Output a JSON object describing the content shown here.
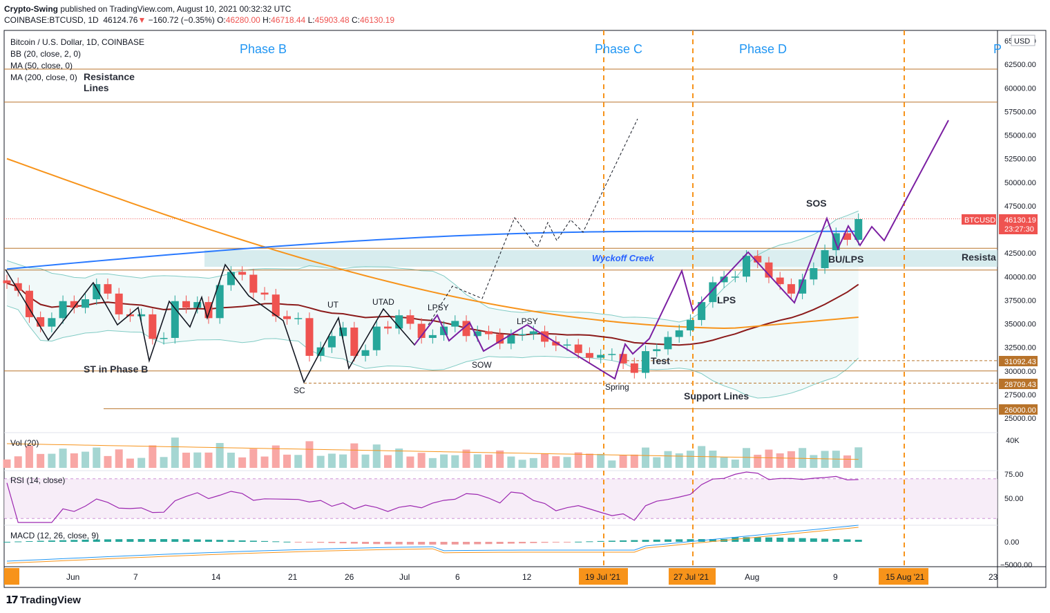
{
  "header": {
    "publisher": "Crypto-Swing",
    "published_text": "published on TradingView.com, August 10, 2021 00:32:32 UTC",
    "symbol": "COINBASE:BTCUSD, 1D",
    "last": "46124.76",
    "change": "−160.72 (−0.35%)",
    "o_label": "O:",
    "o": "46280.00",
    "h_label": "H:",
    "h": "46718.44",
    "l_label": "L:",
    "l": "45903.48",
    "c_label": "C:",
    "c": "46130.19"
  },
  "legend": {
    "title": "Bitcoin / U.S. Dollar, 1D, COINBASE",
    "bb": "BB (20, close, 2, 0)",
    "ma50": "MA (50, close, 0)",
    "ma200": "MA (200, close, 0)",
    "vol": "Vol (20)",
    "rsi": "RSI (14, close)",
    "macd": "MACD (12, 26, close, 9)"
  },
  "currency": "USD",
  "price_axis": [
    "65000.00",
    "62500.00",
    "60000.00",
    "57500.00",
    "55000.00",
    "52500.00",
    "50000.00",
    "47500.00",
    "45000.00",
    "42500.00",
    "40000.00",
    "37500.00",
    "35000.00",
    "32500.00",
    "30000.00",
    "27500.00",
    "25000.00"
  ],
  "price_tags": {
    "btcusd_label": "BTCUSD",
    "btcusd_price": "46130.19",
    "btcusd_time": "23:27:30",
    "support1": "31092.43",
    "support2": "28709.43",
    "support3": "26000.00"
  },
  "vol_axis": "40K",
  "rsi_axis": [
    "75.00",
    "50.00"
  ],
  "macd_axis": [
    "0.00",
    "−5000.00"
  ],
  "time_axis": {
    "ticks": [
      "21",
      "Jun",
      "7",
      "14",
      "21",
      "26",
      "Jul",
      "6",
      "12",
      "Aug",
      "9",
      "23"
    ],
    "highlighted": [
      "19 Jul '21",
      "27 Jul '21",
      "15 Aug '21"
    ]
  },
  "annotations": {
    "phase_b": "Phase B",
    "phase_c": "Phase C",
    "phase_d": "Phase D",
    "phase_e_partial": "P",
    "resistance_lines": [
      "Resistance",
      "Lines"
    ],
    "wyckoff_creek": "Wyckoff Creek",
    "resista": "Resista",
    "st_in_phase_b": "ST in Phase B",
    "sc": "SC",
    "ut": "UT",
    "utad": "UTAD",
    "lpsy1": "LPSY",
    "lpsy2": "LPSY",
    "sow": "SOW",
    "spring": "Spring",
    "test": "Test",
    "support_lines": "Support Lines",
    "lps": "LPS",
    "sos": "SOS",
    "bu_lps": "BU/LPS"
  },
  "footer": {
    "brand": "TradingView"
  },
  "colors": {
    "up": "#26a69a",
    "down": "#ef5350",
    "ma200": "#2979ff",
    "ma50": "#f7931a",
    "bb": "#8b1a1a",
    "phase": "#2196f3",
    "orange_line": "#b8732a",
    "wyckoff_path": "#7b1fa2",
    "rsi": "#9c27b0"
  },
  "chart_data": {
    "type": "candlestick",
    "x": [
      "May 25",
      "May 26",
      "May 27",
      "May 28",
      "May 29",
      "May 30",
      "May 31",
      "Jun 1",
      "Jun 2",
      "Jun 3",
      "Jun 4",
      "Jun 5",
      "Jun 6",
      "Jun 7",
      "Jun 8",
      "Jun 9",
      "Jun 10",
      "Jun 11",
      "Jun 12",
      "Jun 13",
      "Jun 14",
      "Jun 15",
      "Jun 16",
      "Jun 17",
      "Jun 18",
      "Jun 19",
      "Jun 20",
      "Jun 21",
      "Jun 22",
      "Jun 23",
      "Jun 24",
      "Jun 25",
      "Jun 26",
      "Jun 27",
      "Jun 28",
      "Jun 29",
      "Jun 30",
      "Jul 1",
      "Jul 2",
      "Jul 3",
      "Jul 4",
      "Jul 5",
      "Jul 6",
      "Jul 7",
      "Jul 8",
      "Jul 9",
      "Jul 10",
      "Jul 11",
      "Jul 12",
      "Jul 13",
      "Jul 14",
      "Jul 15",
      "Jul 16",
      "Jul 17",
      "Jul 18",
      "Jul 19",
      "Jul 20",
      "Jul 21",
      "Jul 22",
      "Jul 23",
      "Jul 24",
      "Jul 25",
      "Jul 26",
      "Jul 27",
      "Jul 28",
      "Jul 29",
      "Jul 30",
      "Jul 31",
      "Aug 1",
      "Aug 2",
      "Aug 3",
      "Aug 4",
      "Aug 5",
      "Aug 6",
      "Aug 7",
      "Aug 8",
      "Aug 9"
    ],
    "close": [
      39300,
      38500,
      35700,
      34700,
      35600,
      37400,
      36700,
      37600,
      39200,
      38200,
      36000,
      35800,
      36000,
      33400,
      33500,
      37400,
      36700,
      37300,
      35600,
      39100,
      40500,
      40200,
      38300,
      38100,
      35800,
      35500,
      35600,
      31600,
      32500,
      33700,
      34600,
      31600,
      32200,
      34700,
      34500,
      35900,
      35000,
      33500,
      33800,
      34700,
      35300,
      33700,
      34200,
      33900,
      32900,
      33800,
      33900,
      34200,
      33100,
      32700,
      32800,
      31900,
      31400,
      31700,
      31800,
      30800,
      29800,
      32100,
      32300,
      33600,
      34300,
      35400,
      37300,
      39400,
      40000,
      40000,
      42200,
      41500,
      39900,
      39200,
      38200,
      39700,
      40900,
      42800,
      44600,
      43900,
      46100
    ],
    "ylim": [
      25000,
      65000
    ],
    "series_lines": [
      "BB (20, close, 2, 0)",
      "MA (50, close, 0)",
      "MA (200, close, 0)"
    ],
    "horizontal_levels": [
      62000,
      58500,
      43000,
      40700,
      31092.43,
      30000,
      28709.43,
      26000
    ],
    "phase_dates": [
      "Jul 19",
      "Jul 27",
      "Aug 15"
    ]
  }
}
